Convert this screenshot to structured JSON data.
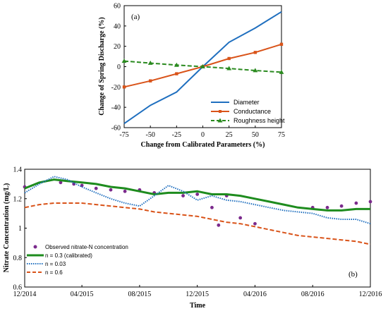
{
  "chart_data": [
    {
      "type": "line",
      "panel_label": "(a)",
      "xlabel": "Change from Calibrated Parameters (%)",
      "ylabel": "Change of Spring Discharge (%)",
      "xlim": [
        -75,
        75
      ],
      "ylim": [
        -60,
        60
      ],
      "x_ticks": [
        -75,
        -50,
        -25,
        0,
        25,
        50,
        75
      ],
      "y_ticks": [
        -60,
        -40,
        -20,
        0,
        20,
        40,
        60
      ],
      "legend_position": "bottom-right",
      "grid": false,
      "series": [
        {
          "name": "Diameter",
          "color": "#1f6fbf",
          "style": "solid",
          "marker": "none",
          "x": [
            -75,
            -50,
            -25,
            0,
            25,
            50,
            75
          ],
          "y": [
            -56,
            -38,
            -25,
            0,
            24,
            38,
            54
          ]
        },
        {
          "name": "Conductance",
          "color": "#d95319",
          "style": "solid",
          "marker": "square",
          "x": [
            -75,
            -50,
            -25,
            0,
            25,
            50,
            75
          ],
          "y": [
            -20,
            -14,
            -7,
            0,
            8,
            14,
            22
          ]
        },
        {
          "name": "Roughness height",
          "color": "#2a8a1f",
          "style": "dashed",
          "marker": "triangle",
          "x": [
            -75,
            -50,
            -25,
            0,
            25,
            50,
            75
          ],
          "y": [
            5.5,
            3.5,
            1.5,
            0,
            -1.8,
            -3.8,
            -5.5
          ]
        }
      ]
    },
    {
      "type": "line",
      "panel_label": "(b)",
      "xlabel": "Time",
      "ylabel": "Nitrate Concentration (mg/L)",
      "xlim": [
        "12/2014",
        "12/2016"
      ],
      "ylim": [
        0.6,
        1.4
      ],
      "x_ticks": [
        "12/2014",
        "04/2015",
        "08/2015",
        "12/2015",
        "04/2016",
        "08/2016",
        "12/2016"
      ],
      "y_ticks": [
        0.6,
        0.8,
        1.0,
        1.2,
        1.4
      ],
      "legend_position": "lower-left",
      "grid": false,
      "series": [
        {
          "name": "Observed nitrate-N concentration",
          "color": "#7b2a8c",
          "style": "none",
          "marker": "circle",
          "x": [
            "2014-12-01",
            "2015-02-15",
            "2015-03-15",
            "2015-04-01",
            "2015-05-01",
            "2015-06-01",
            "2015-07-01",
            "2015-08-01",
            "2015-09-01",
            "2015-11-01",
            "2015-12-01",
            "2016-01-01",
            "2016-01-15",
            "2016-02-01",
            "2016-03-01",
            "2016-04-01",
            "2016-08-01",
            "2016-09-01",
            "2016-10-01",
            "2016-11-01",
            "2016-12-01"
          ],
          "y": [
            1.28,
            1.31,
            1.3,
            1.29,
            1.27,
            1.26,
            1.25,
            1.26,
            1.24,
            1.22,
            1.23,
            1.14,
            1.02,
            1.22,
            1.07,
            1.03,
            1.14,
            1.14,
            1.15,
            1.17,
            1.18
          ]
        },
        {
          "name": "n = 0.3 (calibrated)",
          "color": "#1e8c1e",
          "style": "solid",
          "marker": "none",
          "x": [
            "2014-12-01",
            "2015-01-01",
            "2015-02-01",
            "2015-03-01",
            "2015-04-01",
            "2015-05-01",
            "2015-06-01",
            "2015-07-01",
            "2015-08-01",
            "2015-09-01",
            "2015-10-01",
            "2015-11-01",
            "2015-12-01",
            "2016-01-01",
            "2016-02-01",
            "2016-03-01",
            "2016-04-01",
            "2016-05-01",
            "2016-06-01",
            "2016-07-01",
            "2016-08-01",
            "2016-09-01",
            "2016-10-01",
            "2016-11-01",
            "2016-12-01"
          ],
          "y": [
            1.27,
            1.31,
            1.33,
            1.32,
            1.31,
            1.3,
            1.28,
            1.27,
            1.25,
            1.23,
            1.24,
            1.24,
            1.25,
            1.23,
            1.23,
            1.22,
            1.2,
            1.18,
            1.16,
            1.14,
            1.13,
            1.12,
            1.12,
            1.13,
            1.13
          ]
        },
        {
          "name": "n = 0.03",
          "color": "#1f6fbf",
          "style": "dotted",
          "marker": "none",
          "x": [
            "2014-12-01",
            "2015-01-01",
            "2015-02-01",
            "2015-03-01",
            "2015-04-01",
            "2015-05-01",
            "2015-06-01",
            "2015-07-01",
            "2015-08-01",
            "2015-09-01",
            "2015-10-01",
            "2015-11-01",
            "2015-12-01",
            "2016-01-01",
            "2016-02-01",
            "2016-03-01",
            "2016-04-01",
            "2016-05-01",
            "2016-06-01",
            "2016-07-01",
            "2016-08-01",
            "2016-09-01",
            "2016-10-01",
            "2016-11-01",
            "2016-12-01"
          ],
          "y": [
            1.24,
            1.3,
            1.35,
            1.33,
            1.28,
            1.24,
            1.2,
            1.17,
            1.15,
            1.22,
            1.29,
            1.25,
            1.19,
            1.22,
            1.19,
            1.18,
            1.16,
            1.14,
            1.12,
            1.11,
            1.1,
            1.07,
            1.06,
            1.06,
            1.03
          ]
        },
        {
          "name": "n = 0.6",
          "color": "#d95319",
          "style": "dashed",
          "marker": "none",
          "x": [
            "2014-12-01",
            "2015-01-01",
            "2015-02-01",
            "2015-03-01",
            "2015-04-01",
            "2015-05-01",
            "2015-06-01",
            "2015-07-01",
            "2015-08-01",
            "2015-09-01",
            "2015-10-01",
            "2015-11-01",
            "2015-12-01",
            "2016-01-01",
            "2016-02-01",
            "2016-03-01",
            "2016-04-01",
            "2016-05-01",
            "2016-06-01",
            "2016-07-01",
            "2016-08-01",
            "2016-09-01",
            "2016-10-01",
            "2016-11-01",
            "2016-12-01"
          ],
          "y": [
            1.14,
            1.16,
            1.17,
            1.17,
            1.17,
            1.16,
            1.15,
            1.14,
            1.13,
            1.11,
            1.1,
            1.09,
            1.08,
            1.06,
            1.04,
            1.03,
            1.01,
            0.99,
            0.97,
            0.95,
            0.94,
            0.93,
            0.92,
            0.91,
            0.89
          ]
        }
      ]
    }
  ]
}
